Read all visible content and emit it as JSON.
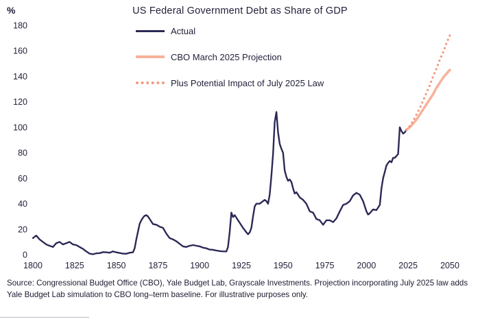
{
  "title": "US Federal Government Debt as Share of GDP",
  "y_axis_unit": "%",
  "legend": [
    {
      "label": "Actual",
      "color": "#2b2955",
      "style": "solid",
      "thickness": 3
    },
    {
      "label": "CBO March 2025 Projection",
      "color": "#f8b29b",
      "style": "solid",
      "thickness": 4
    },
    {
      "label": "Plus Potential Impact of July 2025 Law",
      "color": "#f5997e",
      "style": "dotted",
      "thickness": 4
    }
  ],
  "source_note": "Source: Congressional Budget Office (CBO), Yale Budget Lab, Grayscale Investments. Projection incorporating July 2025 law adds Yale Budget Lab simulation to CBO long–term baseline. For illustrative purposes only.",
  "chart_data": {
    "type": "line",
    "title": "US Federal Government Debt as Share of GDP",
    "xlabel": "",
    "ylabel": "%",
    "xlim": [
      1800,
      2050
    ],
    "ylim": [
      0,
      180
    ],
    "x_ticks": [
      1800,
      1825,
      1850,
      1875,
      1900,
      1925,
      1950,
      1975,
      2000,
      2025,
      2050
    ],
    "y_ticks": [
      0,
      20,
      40,
      60,
      80,
      100,
      120,
      140,
      160,
      180
    ],
    "grid": false,
    "legend_position": "upper-left-inside",
    "series": [
      {
        "name": "Actual",
        "color": "#2b2955",
        "style": "solid",
        "width": 2.4,
        "x": [
          1800,
          1802,
          1804,
          1806,
          1808,
          1810,
          1812,
          1814,
          1816,
          1818,
          1820,
          1822,
          1824,
          1826,
          1828,
          1830,
          1832,
          1834,
          1836,
          1838,
          1840,
          1842,
          1844,
          1846,
          1848,
          1850,
          1852,
          1854,
          1856,
          1858,
          1860,
          1861,
          1862,
          1863,
          1864,
          1865,
          1866,
          1867,
          1868,
          1869,
          1870,
          1872,
          1874,
          1876,
          1878,
          1880,
          1882,
          1884,
          1886,
          1888,
          1890,
          1892,
          1894,
          1896,
          1898,
          1900,
          1902,
          1904,
          1906,
          1908,
          1910,
          1912,
          1914,
          1916,
          1917,
          1918,
          1919,
          1920,
          1921,
          1922,
          1924,
          1926,
          1928,
          1929,
          1930,
          1931,
          1932,
          1933,
          1934,
          1936,
          1938,
          1939,
          1940,
          1941,
          1942,
          1943,
          1944,
          1945,
          1946,
          1947,
          1948,
          1949,
          1950,
          1951,
          1952,
          1953,
          1954,
          1955,
          1956,
          1957,
          1958,
          1959,
          1960,
          1962,
          1964,
          1966,
          1968,
          1970,
          1972,
          1974,
          1976,
          1978,
          1980,
          1982,
          1984,
          1986,
          1988,
          1990,
          1992,
          1994,
          1996,
          1998,
          2000,
          2001,
          2002,
          2004,
          2006,
          2008,
          2009,
          2010,
          2011,
          2012,
          2013,
          2014,
          2015,
          2016,
          2017,
          2018,
          2019,
          2020,
          2021,
          2022,
          2023,
          2024
        ],
        "y": [
          13,
          15,
          12,
          10,
          8,
          7,
          6,
          9,
          10,
          8,
          9,
          10,
          8,
          7.5,
          6,
          4.5,
          2.5,
          0.8,
          0.3,
          1,
          1.2,
          2,
          1.8,
          1.5,
          2.5,
          1.8,
          1.3,
          0.8,
          0.7,
          1.5,
          1.8,
          5,
          12,
          18,
          24,
          27,
          29,
          30.5,
          31,
          30,
          28,
          24,
          23.5,
          22,
          21,
          16.5,
          13,
          12,
          10.5,
          8.5,
          6.5,
          6,
          7,
          7.5,
          7,
          6.5,
          5.5,
          5,
          4,
          3.8,
          3.2,
          2.8,
          2.6,
          2.5,
          6,
          18,
          33,
          29.5,
          31,
          29,
          25,
          21,
          17.5,
          16,
          17.5,
          21,
          30,
          38,
          40,
          40,
          42,
          43,
          42,
          40,
          47,
          62,
          79,
          104,
          112,
          96,
          87,
          83,
          80,
          66,
          61,
          58,
          59,
          57,
          52,
          48,
          49,
          47,
          45,
          43,
          40,
          34,
          33,
          28,
          27,
          23.5,
          27,
          27,
          25.5,
          28.5,
          34,
          39,
          40,
          42,
          46.5,
          48.5,
          47,
          42,
          34,
          31.5,
          32.5,
          35.5,
          35,
          39,
          52,
          60,
          65,
          70,
          72,
          73.5,
          72.5,
          76,
          76,
          77.5,
          79,
          100,
          97,
          95,
          96,
          98
        ]
      },
      {
        "name": "CBO March 2025 Projection",
        "color": "#f8b29b",
        "style": "solid",
        "width": 3.6,
        "x": [
          2024,
          2026,
          2028,
          2030,
          2032,
          2034,
          2036,
          2038,
          2040,
          2042,
          2044,
          2046,
          2048,
          2050
        ],
        "y": [
          98,
          100,
          103,
          106,
          110,
          114,
          118,
          122,
          126,
          131,
          135,
          139,
          142,
          145
        ]
      },
      {
        "name": "Plus Potential Impact of July 2025 Law",
        "color": "#f5997e",
        "style": "dotted",
        "width": 3.2,
        "x": [
          2024,
          2026,
          2028,
          2030,
          2032,
          2034,
          2036,
          2038,
          2040,
          2042,
          2044,
          2046,
          2048,
          2050
        ],
        "y": [
          98,
          101,
          105,
          110,
          115,
          121,
          127,
          133,
          140,
          146,
          153,
          159,
          166,
          172
        ]
      }
    ]
  }
}
